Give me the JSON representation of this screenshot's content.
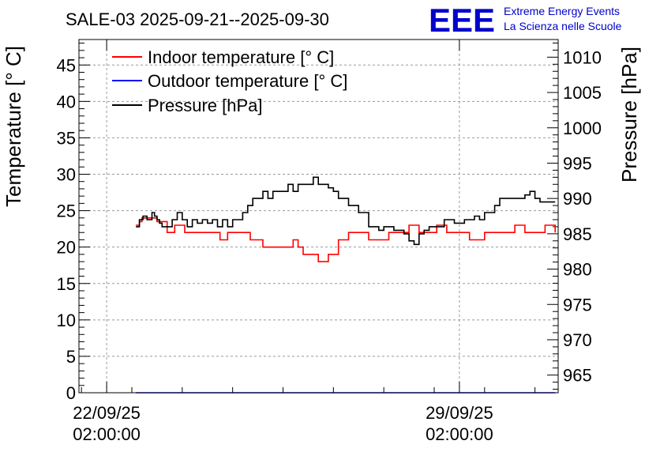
{
  "chart_data": {
    "type": "line",
    "title": "SALE-03 2025-09-21--2025-09-30",
    "logo": {
      "text": "EEE",
      "line1": "Extreme Energy Events",
      "line2": "La Scienza nelle Scuole"
    },
    "ylabel_left": "Temperature [° C]",
    "ylabel_right": "Pressure [hPa]",
    "ylim_left": [
      0,
      48.5
    ],
    "ylim_right": [
      962.5,
      1012.5
    ],
    "yticks_left": [
      0,
      5,
      10,
      15,
      20,
      25,
      30,
      35,
      40,
      45
    ],
    "yticks_right": [
      965,
      970,
      975,
      980,
      985,
      990,
      995,
      1000,
      1005,
      1010
    ],
    "xlim_days": [
      -0.55,
      8.96
    ],
    "xticks": [
      {
        "day": 0,
        "label1": "22/09/25",
        "label2": "02:00:00"
      },
      {
        "day": 7,
        "label1": "29/09/25",
        "label2": "02:00:00"
      }
    ],
    "grid": true,
    "legend_position": "top-left",
    "colors": {
      "indoor": "#ff0000",
      "outdoor": "#0000ff",
      "pressure": "#000000"
    },
    "series": [
      {
        "name": "Indoor temperature [° C]",
        "key": "indoor",
        "axis": "left",
        "x": [
          0.58,
          0.6,
          0.65,
          0.7,
          0.9,
          1.0,
          1.2,
          1.3,
          1.35,
          1.5,
          1.55,
          1.7,
          1.8,
          2.2,
          2.25,
          2.4,
          2.6,
          2.8,
          2.85,
          3.1,
          3.2,
          3.3,
          3.65,
          3.7,
          3.8,
          3.9,
          4.0,
          4.2,
          4.4,
          4.6,
          4.8,
          5.0,
          5.2,
          5.4,
          5.6,
          5.8,
          6.0,
          6.2,
          6.35,
          6.5,
          6.55,
          6.7,
          6.75,
          6.8,
          7.0,
          7.1,
          7.2,
          7.3,
          7.5,
          7.7,
          7.9,
          8.1,
          8.2,
          8.3,
          8.5,
          8.7,
          8.8,
          8.9
        ],
        "values": [
          23,
          23,
          23.5,
          24,
          24,
          23.5,
          22,
          22,
          23,
          23,
          22,
          22,
          22,
          22,
          21,
          22,
          22,
          22,
          21,
          20,
          20,
          20,
          20,
          21,
          20,
          19,
          19,
          18,
          19,
          21,
          22,
          22,
          21,
          21,
          22,
          22,
          23,
          22,
          22,
          22,
          23,
          23,
          22,
          22,
          22,
          22,
          21,
          21,
          22,
          22,
          22,
          23,
          23,
          22,
          22,
          23,
          23,
          22
        ]
      },
      {
        "name": "Outdoor temperature [° C]",
        "key": "outdoor",
        "axis": "left",
        "x": [
          0.58,
          8.9
        ],
        "values": [
          0,
          0
        ]
      },
      {
        "name": "Pressure [hPa]",
        "key": "pressure",
        "axis": "right",
        "x": [
          0.58,
          0.65,
          0.72,
          0.8,
          0.9,
          0.95,
          1.0,
          1.05,
          1.1,
          1.2,
          1.3,
          1.4,
          1.5,
          1.6,
          1.7,
          1.8,
          1.9,
          2.0,
          2.1,
          2.2,
          2.3,
          2.4,
          2.5,
          2.6,
          2.7,
          2.8,
          2.9,
          3.0,
          3.1,
          3.2,
          3.3,
          3.4,
          3.5,
          3.6,
          3.7,
          3.8,
          3.9,
          4.0,
          4.1,
          4.2,
          4.3,
          4.4,
          4.5,
          4.6,
          4.7,
          4.8,
          4.9,
          5.0,
          5.1,
          5.2,
          5.3,
          5.4,
          5.5,
          5.6,
          5.7,
          5.8,
          5.9,
          6.0,
          6.1,
          6.2,
          6.3,
          6.4,
          6.5,
          6.55,
          6.6,
          6.7,
          6.8,
          6.9,
          7.0,
          7.1,
          7.2,
          7.3,
          7.4,
          7.5,
          7.6,
          7.7,
          7.8,
          7.9,
          8.0,
          8.1,
          8.2,
          8.3,
          8.4,
          8.5,
          8.6,
          8.7,
          8.8,
          8.9
        ],
        "values": [
          986,
          987,
          987.5,
          987,
          988,
          987.5,
          987,
          986.5,
          986,
          986,
          987,
          988,
          987,
          986,
          987,
          986.5,
          987,
          986.5,
          987,
          986,
          987,
          986,
          987,
          987,
          988,
          989,
          990,
          990,
          991,
          990,
          991,
          991,
          991,
          992,
          991,
          992,
          992,
          992,
          993,
          992,
          992,
          991.5,
          991,
          990,
          990,
          989,
          989,
          988,
          988,
          986,
          986,
          985.5,
          986,
          986,
          985.5,
          985.5,
          985,
          984,
          983.5,
          985,
          985.5,
          986,
          986,
          986,
          986,
          987,
          987,
          986.5,
          986.5,
          987,
          987,
          987.5,
          987,
          988,
          988,
          989,
          990,
          990,
          990,
          990,
          990,
          990.5,
          991,
          990,
          989.5,
          989.5,
          989.5,
          989.5
        ]
      }
    ]
  }
}
